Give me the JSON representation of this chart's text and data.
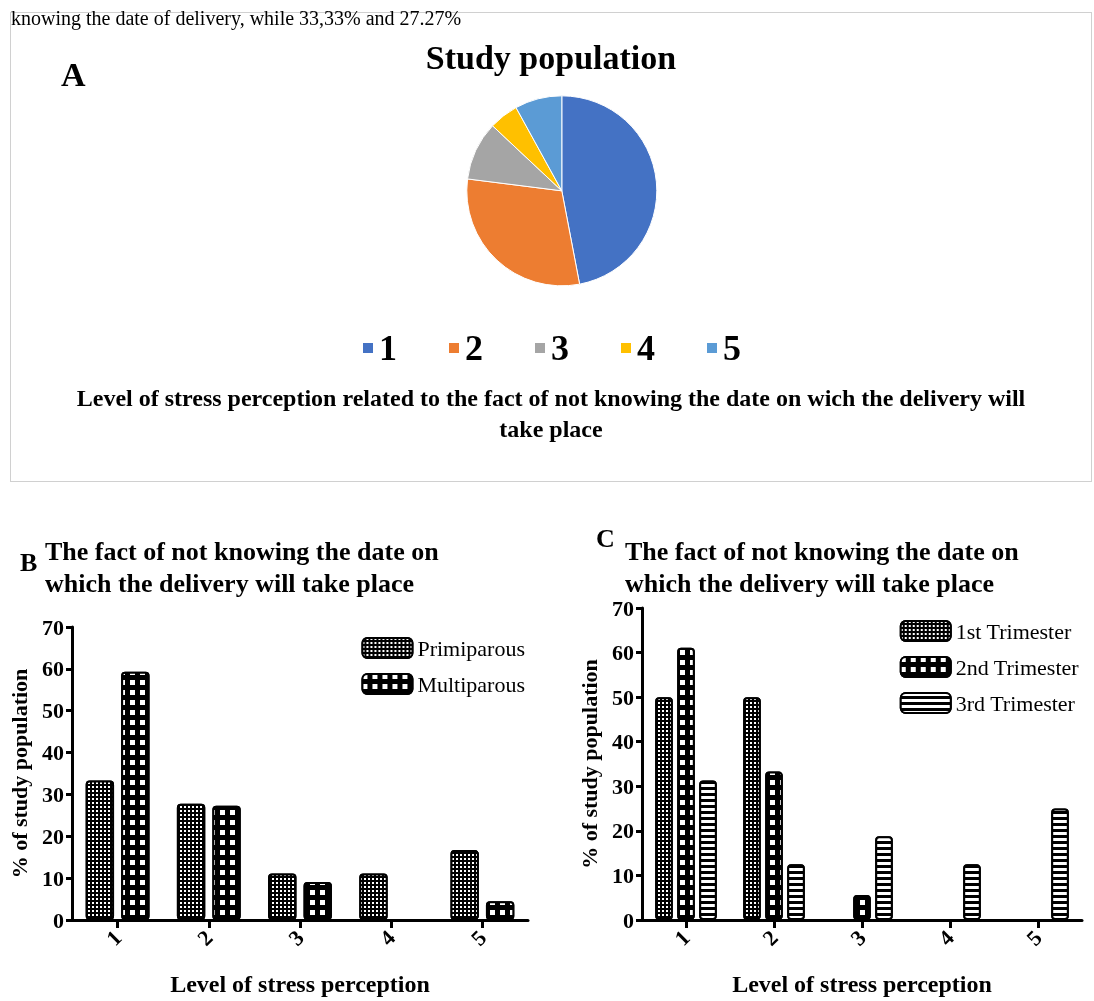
{
  "chart_data": [
    {
      "type": "pie",
      "title": "Study population",
      "categories": [
        "1",
        "2",
        "3",
        "4",
        "5"
      ],
      "values": [
        47,
        30,
        10,
        5,
        8
      ],
      "colors": [
        "#4472c4",
        "#ed7d31",
        "#a5a5a5",
        "#ffc000",
        "#5b9bd5"
      ],
      "legend": "bottom",
      "annotations": [
        "knowing the date of delivery, while 33,33% and 27.27%",
        "A",
        "Level of stress perception related to the fact of not knowing the date on wich the delivery will take place"
      ]
    },
    {
      "type": "bar",
      "title": "The fact of not knowing the date on which the delivery will take place",
      "xlabel": "Level of stress perception",
      "ylabel": "% of study population",
      "categories": [
        "1",
        "2",
        "3",
        "4",
        "5"
      ],
      "series": [
        {
          "name": "Primiparous",
          "color": "#000000",
          "values": [
            33.3,
            27.8,
            11.1,
            11.1,
            16.7
          ]
        },
        {
          "name": "Multiparous",
          "color": "#000000",
          "values": [
            59.3,
            27.3,
            9.1,
            0,
            4.5
          ]
        }
      ],
      "ylim": [
        0,
        70
      ],
      "yticks": [
        0,
        10,
        20,
        30,
        40,
        50,
        60,
        70
      ],
      "grid": false,
      "legend": "top right",
      "annotations": [
        "B"
      ]
    },
    {
      "type": "bar",
      "title": "The fact of not knowing the date on which the delivery will take place",
      "xlabel": "Level of stress perception",
      "ylabel": "% of study population",
      "categories": [
        "1",
        "2",
        "3",
        "4",
        "5"
      ],
      "series": [
        {
          "name": "1st Trimester",
          "color": "#000000",
          "values": [
            50,
            50,
            0,
            0,
            0
          ]
        },
        {
          "name": "2nd Trimester",
          "color": "#000000",
          "values": [
            61.1,
            33.3,
            5.6,
            0,
            0
          ]
        },
        {
          "name": "3rd Trimester",
          "color": "#000000",
          "values": [
            31.3,
            12.5,
            18.8,
            12.5,
            25
          ]
        }
      ],
      "ylim": [
        0,
        70
      ],
      "yticks": [
        0,
        10,
        20,
        30,
        40,
        50,
        60,
        70
      ],
      "grid": false,
      "legend": "top right",
      "annotations": [
        "C"
      ]
    }
  ]
}
